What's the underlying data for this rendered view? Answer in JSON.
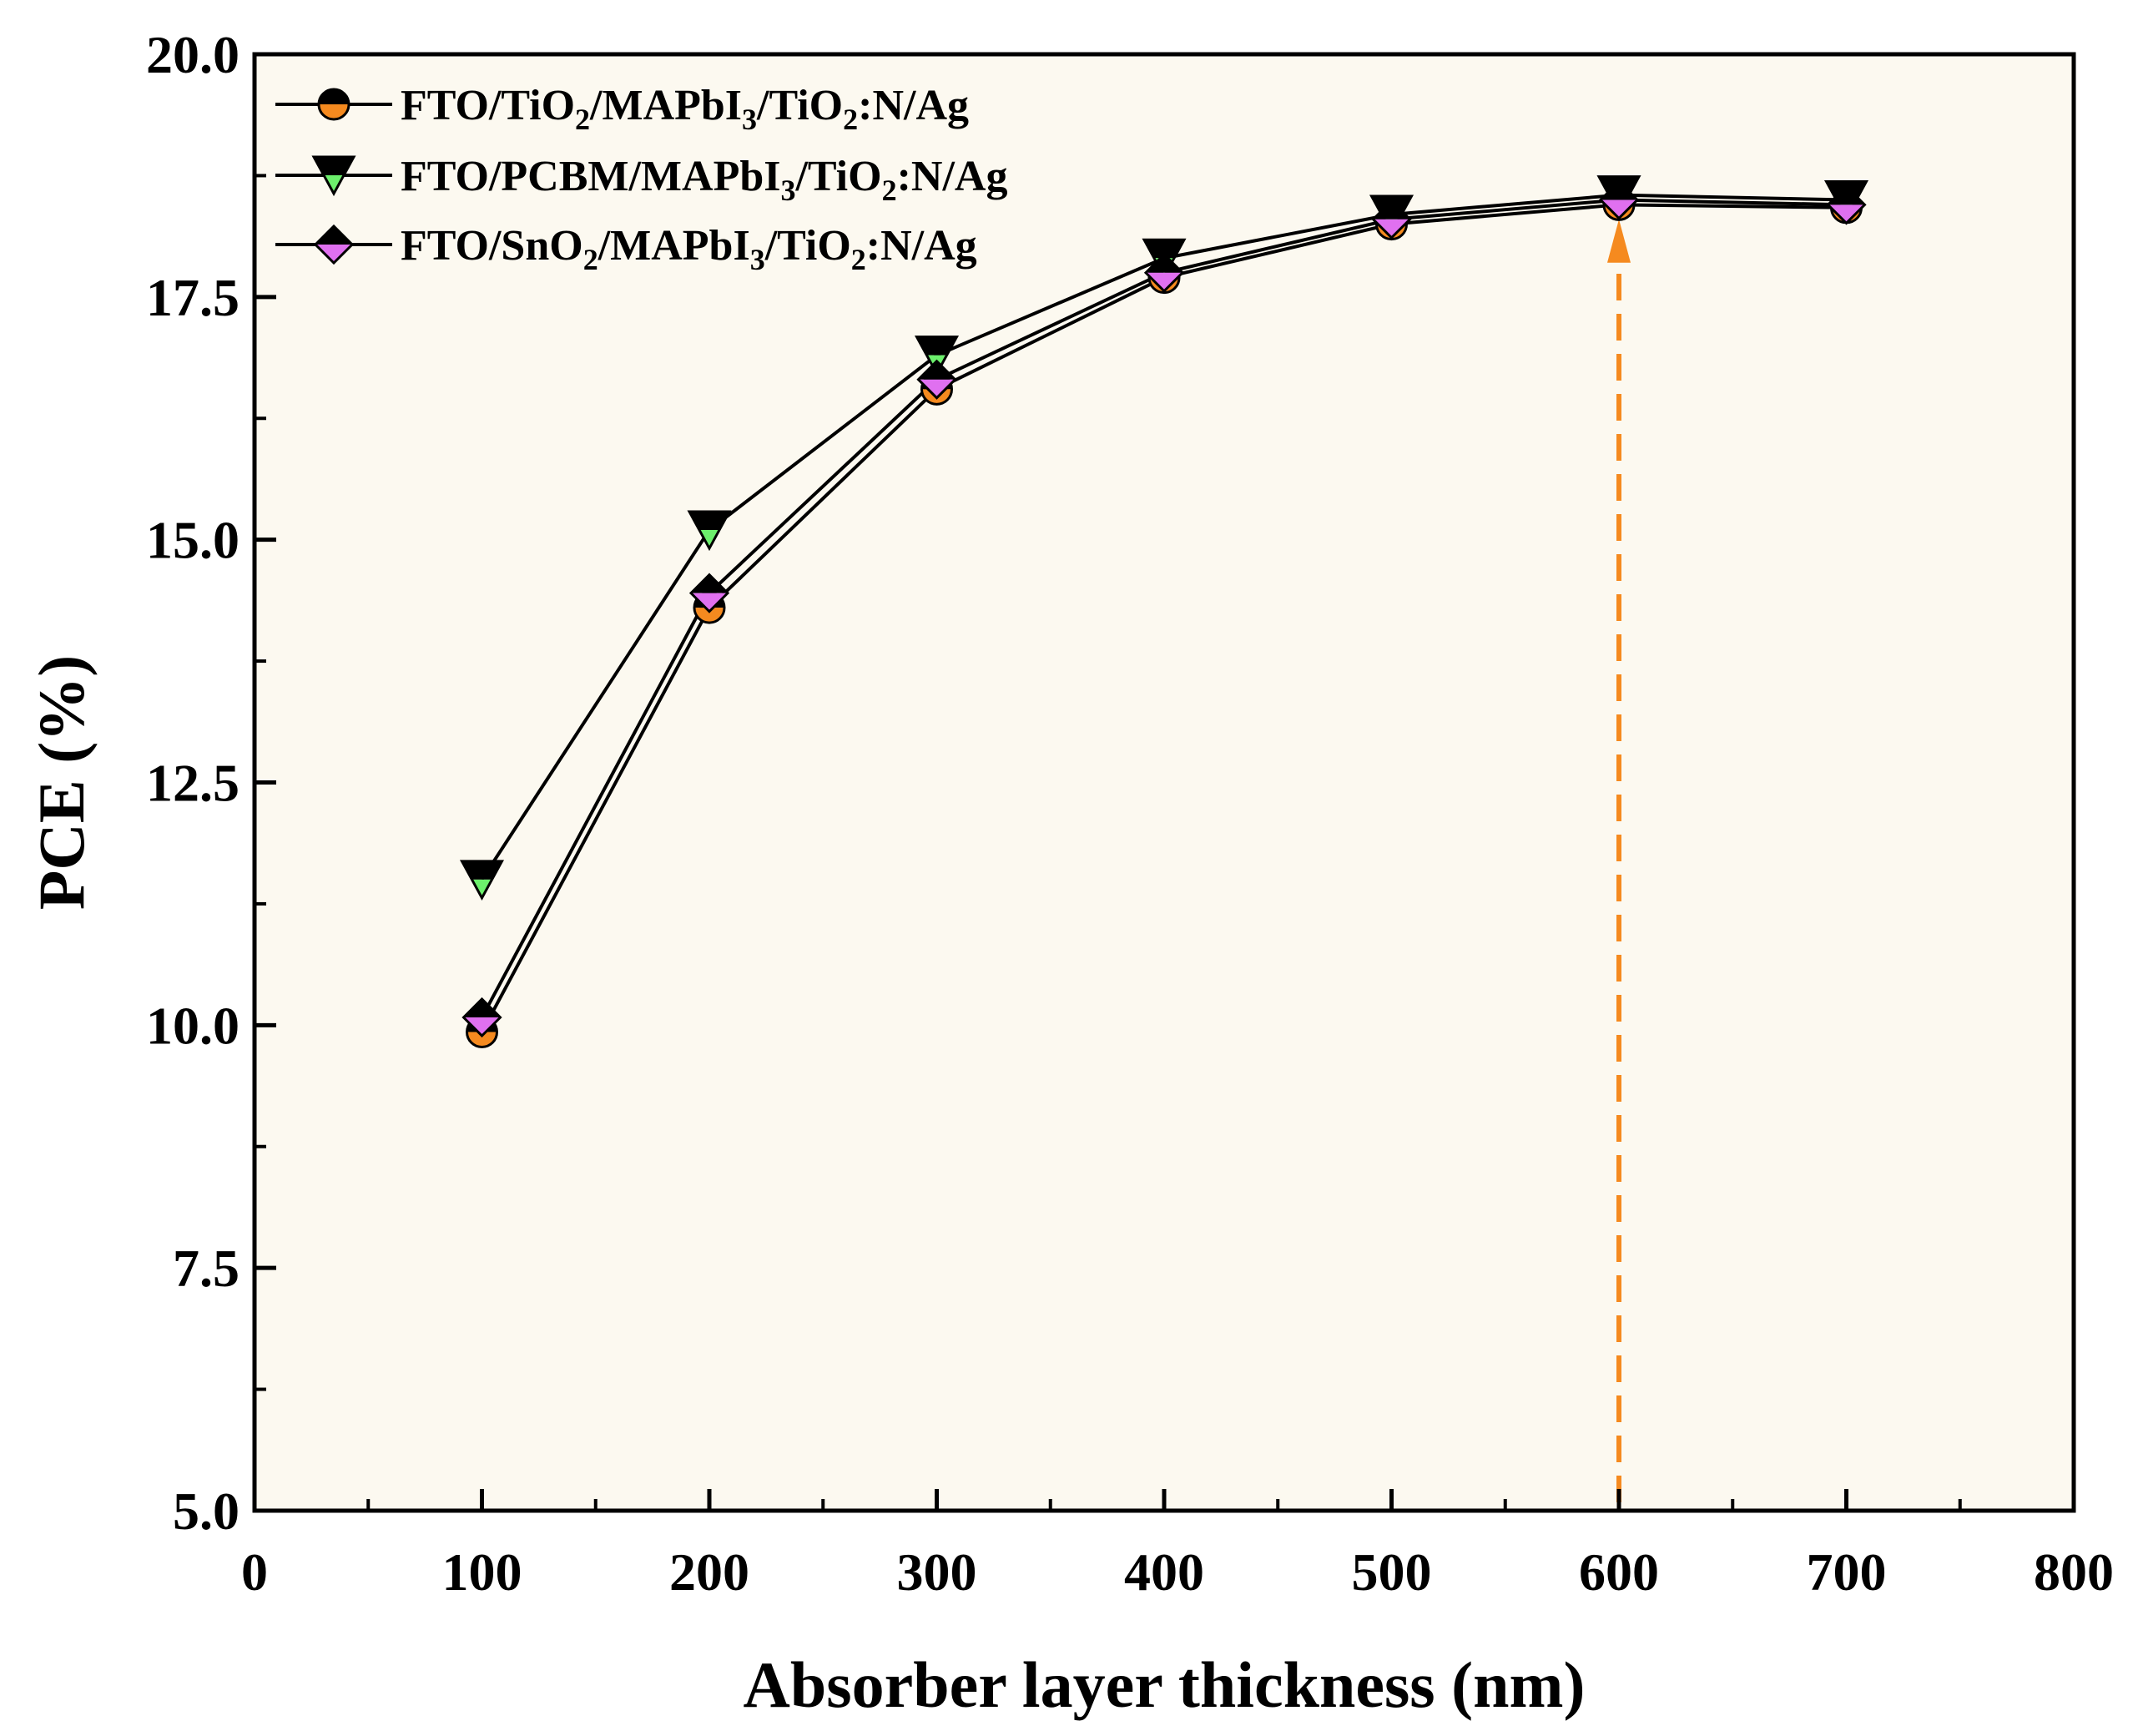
{
  "chart_data": {
    "type": "line",
    "title": "",
    "xlabel": "Absorber layer thickness (nm)",
    "ylabel": "PCE (%)",
    "xlim": [
      0,
      800
    ],
    "ylim": [
      5.0,
      20.0
    ],
    "x_ticks": [
      0,
      100,
      200,
      300,
      400,
      500,
      600,
      700,
      800
    ],
    "x_tick_labels": [
      "0",
      "100",
      "200",
      "300",
      "400",
      "500",
      "600",
      "700",
      "800"
    ],
    "y_ticks": [
      5.0,
      7.5,
      10.0,
      12.5,
      15.0,
      17.5,
      20.0
    ],
    "y_tick_labels": [
      "5.0",
      "7.5",
      "10.0",
      "12.5",
      "15.0",
      "17.5",
      "20.0"
    ],
    "grid": false,
    "legend_position": "top-left",
    "background": "#fcf9f0",
    "x": [
      100,
      200,
      300,
      400,
      500,
      600,
      700
    ],
    "series": [
      {
        "name": "FTO/TiO2/MAPbI3/TiO2:N/Ag",
        "legend_parts": [
          {
            "t": "FTO/TiO",
            "sub": false
          },
          {
            "t": "2",
            "sub": true
          },
          {
            "t": "/MAPbI",
            "sub": false
          },
          {
            "t": "3",
            "sub": true
          },
          {
            "t": "/TiO",
            "sub": false
          },
          {
            "t": "2",
            "sub": true
          },
          {
            "t": ":N/Ag",
            "sub": false
          }
        ],
        "marker": "circle",
        "color": "#f58a1f",
        "values": [
          9.93,
          14.3,
          16.55,
          17.7,
          18.25,
          18.45,
          18.42
        ]
      },
      {
        "name": "FTO/PCBM/MAPbI3/TiO2:N/Ag",
        "legend_parts": [
          {
            "t": "FTO/PCBM/MAPbI",
            "sub": false
          },
          {
            "t": "3",
            "sub": true
          },
          {
            "t": "/TiO",
            "sub": false
          },
          {
            "t": "2",
            "sub": true
          },
          {
            "t": ":N/Ag",
            "sub": false
          }
        ],
        "marker": "triangle-down",
        "color": "#6cf06c",
        "values": [
          11.5,
          15.1,
          16.9,
          17.9,
          18.35,
          18.55,
          18.5
        ]
      },
      {
        "name": "FTO/SnO2/MAPbI3/TiO2:N/Ag",
        "legend_parts": [
          {
            "t": "FTO/SnO",
            "sub": false
          },
          {
            "t": "2",
            "sub": true
          },
          {
            "t": "/MAPbI",
            "sub": false
          },
          {
            "t": "3",
            "sub": true
          },
          {
            "t": "/TiO",
            "sub": false
          },
          {
            "t": "2",
            "sub": true
          },
          {
            "t": ":N/Ag",
            "sub": false
          }
        ],
        "marker": "diamond",
        "color": "#e070f0",
        "values": [
          10.08,
          14.45,
          16.65,
          17.75,
          18.3,
          18.5,
          18.45
        ]
      }
    ],
    "annotations": [
      {
        "type": "dashed-arrow",
        "x": 600,
        "y_from": 5.0,
        "y_to": 18.3,
        "color": "#f58a1f"
      }
    ]
  }
}
